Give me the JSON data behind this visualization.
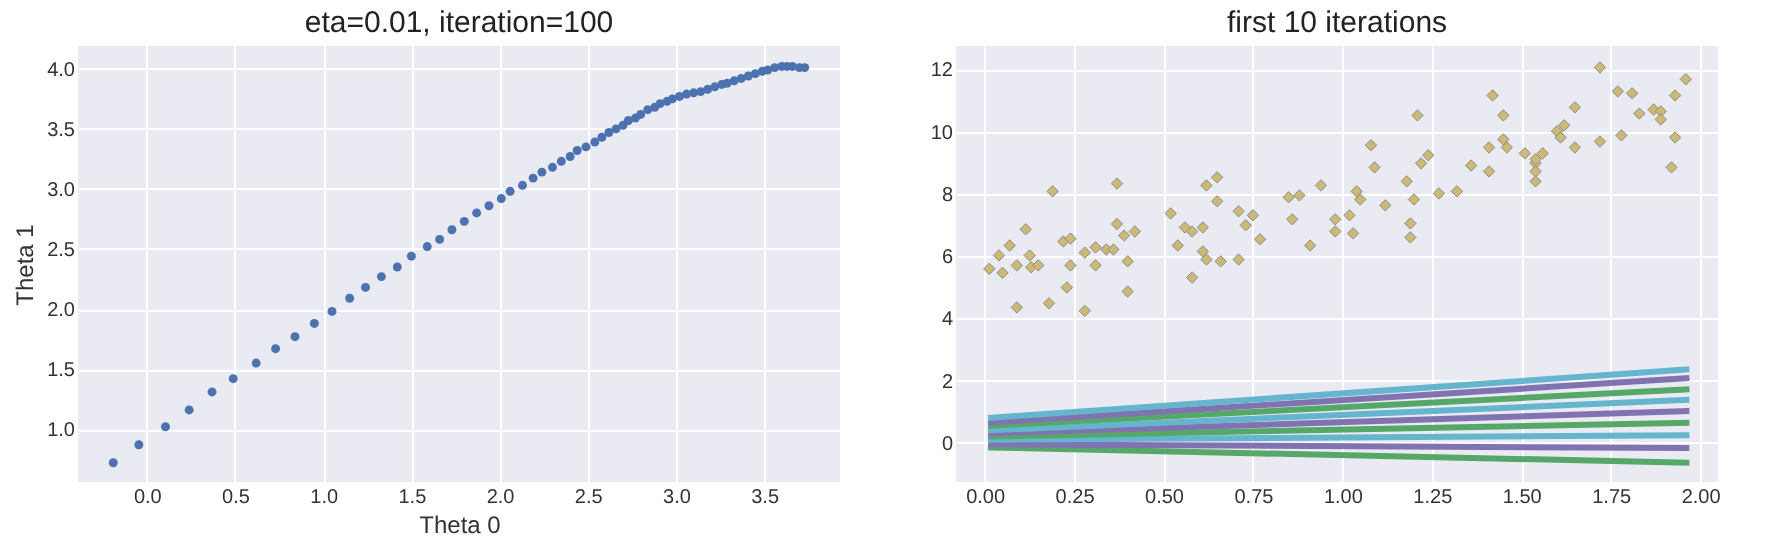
{
  "chart_data": [
    {
      "type": "scatter",
      "title": "eta=0.01, iteration=100",
      "xlabel": "Theta 0",
      "ylabel": "Theta 1",
      "marker": "circle",
      "grid": true,
      "xlim": [
        -0.39,
        3.93
      ],
      "ylim": [
        0.56,
        4.19
      ],
      "xticks": [
        {
          "value": 0,
          "label": "0.0"
        },
        {
          "value": 0.5,
          "label": "0.5"
        },
        {
          "value": 1,
          "label": "1.0"
        },
        {
          "value": 1.5,
          "label": "1.5"
        },
        {
          "value": 2,
          "label": "2.0"
        },
        {
          "value": 2.5,
          "label": "2.5"
        },
        {
          "value": 3,
          "label": "3.0"
        },
        {
          "value": 3.5,
          "label": "3.5"
        }
      ],
      "yticks": [
        {
          "value": 1,
          "label": "1.0"
        },
        {
          "value": 1.5,
          "label": "1.5"
        },
        {
          "value": 2,
          "label": "2.0"
        },
        {
          "value": 2.5,
          "label": "2.5"
        },
        {
          "value": 3,
          "label": "3.0"
        },
        {
          "value": 3.5,
          "label": "3.5"
        },
        {
          "value": 4,
          "label": "4.0"
        }
      ],
      "series": [
        {
          "color": "#4c72b0",
          "x": [
            -0.19,
            -0.045,
            0.106,
            0.24,
            0.37,
            0.49,
            0.62,
            0.73,
            0.84,
            0.95,
            1.05,
            1.15,
            1.24,
            1.33,
            1.42,
            1.5,
            1.59,
            1.66,
            1.73,
            1.8,
            1.87,
            1.94,
            2.01,
            2.06,
            2.13,
            2.19,
            2.24,
            2.3,
            2.35,
            2.4,
            2.44,
            2.49,
            2.54,
            2.58,
            2.62,
            2.66,
            2.7,
            2.73,
            2.77,
            2.8,
            2.84,
            2.88,
            2.91,
            2.95,
            2.98,
            3.02,
            3.06,
            3.1,
            3.14,
            3.18,
            3.22,
            3.26,
            3.29,
            3.33,
            3.37,
            3.41,
            3.45,
            3.49,
            3.52,
            3.56,
            3.6,
            3.63,
            3.66,
            3.7,
            3.73
          ],
          "values": [
            0.72,
            0.87,
            1.02,
            1.16,
            1.31,
            1.42,
            1.55,
            1.67,
            1.77,
            1.88,
            1.98,
            2.09,
            2.18,
            2.27,
            2.35,
            2.44,
            2.52,
            2.58,
            2.66,
            2.73,
            2.8,
            2.86,
            2.92,
            2.98,
            3.03,
            3.09,
            3.14,
            3.18,
            3.23,
            3.27,
            3.32,
            3.35,
            3.39,
            3.43,
            3.47,
            3.5,
            3.53,
            3.57,
            3.59,
            3.62,
            3.66,
            3.68,
            3.71,
            3.73,
            3.75,
            3.77,
            3.79,
            3.8,
            3.81,
            3.83,
            3.85,
            3.87,
            3.88,
            3.9,
            3.92,
            3.94,
            3.96,
            3.98,
            3.99,
            4.01,
            4.02,
            4.02,
            4.02,
            4.01,
            4.01
          ]
        }
      ]
    },
    {
      "type": "scatter",
      "title": "first 10 iterations",
      "grid": true,
      "xlim": [
        -0.08,
        2.05
      ],
      "ylim": [
        -1.26,
        12.75
      ],
      "xticks": [
        {
          "value": 0,
          "label": "0.00"
        },
        {
          "value": 0.25,
          "label": "0.25"
        },
        {
          "value": 0.5,
          "label": "0.50"
        },
        {
          "value": 0.75,
          "label": "0.75"
        },
        {
          "value": 1,
          "label": "1.00"
        },
        {
          "value": 1.25,
          "label": "1.25"
        },
        {
          "value": 1.5,
          "label": "1.50"
        },
        {
          "value": 1.75,
          "label": "1.75"
        },
        {
          "value": 2,
          "label": "2.00"
        }
      ],
      "yticks": [
        0,
        2,
        4,
        6,
        8,
        10,
        12
      ],
      "series": [
        {
          "color": "#ccb974",
          "marker": "diamond",
          "x": [
            0.013,
            0.04,
            0.05,
            0.07,
            0.09,
            0.09,
            0.115,
            0.126,
            0.13,
            0.15,
            0.18,
            0.19,
            0.22,
            0.24,
            0.23,
            0.24,
            0.28,
            0.28,
            0.31,
            0.31,
            0.34,
            0.36,
            0.37,
            0.37,
            0.39,
            0.4,
            0.4,
            0.42,
            0.52,
            0.54,
            0.56,
            0.58,
            0.58,
            0.61,
            0.61,
            0.62,
            0.62,
            0.65,
            0.65,
            0.66,
            0.71,
            0.71,
            0.73,
            0.75,
            0.77,
            0.85,
            0.86,
            0.88,
            0.91,
            0.94,
            0.98,
            0.98,
            1.02,
            1.03,
            1.04,
            1.05,
            1.08,
            1.09,
            1.12,
            1.18,
            1.19,
            1.19,
            1.2,
            1.21,
            1.22,
            1.24,
            1.27,
            1.32,
            1.36,
            1.41,
            1.41,
            1.42,
            1.45,
            1.45,
            1.46,
            1.51,
            1.54,
            1.54,
            1.54,
            1.54,
            1.56,
            1.6,
            1.61,
            1.62,
            1.65,
            1.65,
            1.72,
            1.72,
            1.77,
            1.78,
            1.81,
            1.83,
            1.87,
            1.89,
            1.89,
            1.92,
            1.93,
            1.93,
            1.96
          ],
          "values": [
            5.59,
            6.02,
            5.46,
            6.34,
            5.7,
            4.35,
            6.86,
            6.02,
            5.64,
            5.7,
            4.48,
            8.08,
            6.47,
            6.56,
            4.99,
            5.7,
            6.11,
            4.24,
            6.28,
            5.7,
            6.21,
            6.21,
            8.33,
            7.03,
            6.66,
            5.83,
            4.86,
            6.79,
            7.37,
            6.34,
            6.92,
            5.31,
            6.79,
            6.92,
            6.15,
            8.27,
            5.89,
            8.53,
            7.76,
            5.83,
            7.44,
            5.89,
            6.99,
            7.31,
            6.54,
            7.89,
            7.18,
            7.95,
            6.34,
            8.27,
            7.18,
            6.79,
            7.31,
            6.73,
            8.08,
            7.82,
            9.56,
            8.85,
            7.63,
            8.4,
            7.05,
            6.6,
            7.82,
            10.52,
            8.98,
            9.24,
            8.01,
            8.08,
            8.91,
            9.49,
            8.72,
            11.16,
            10.52,
            9.75,
            9.49,
            9.3,
            8.98,
            8.72,
            8.4,
            9.11,
            9.3,
            10.01,
            9.81,
            10.2,
            10.78,
            9.49,
            12.06,
            9.68,
            11.29,
            9.88,
            11.23,
            10.58,
            10.71,
            10.65,
            10.39,
            8.85,
            11.16,
            9.81,
            11.68
          ]
        },
        {
          "type": "line",
          "marker": "none",
          "color": "#55a868",
          "x": [
            0.01,
            1.97
          ],
          "values": [
            -0.15,
            -0.64
          ]
        },
        {
          "type": "line",
          "marker": "none",
          "color": "#8172b2",
          "x": [
            0.01,
            1.97
          ],
          "values": [
            -0.05,
            -0.17
          ]
        },
        {
          "type": "line",
          "marker": "none",
          "color": "#64b5cd",
          "x": [
            0.01,
            1.97
          ],
          "values": [
            0.1,
            0.24
          ]
        },
        {
          "type": "line",
          "marker": "none",
          "color": "#55a868",
          "x": [
            0.01,
            1.97
          ],
          "values": [
            0.2,
            0.64
          ]
        },
        {
          "type": "line",
          "marker": "none",
          "color": "#8172b2",
          "x": [
            0.01,
            1.97
          ],
          "values": [
            0.3,
            1.02
          ]
        },
        {
          "type": "line",
          "marker": "none",
          "color": "#64b5cd",
          "x": [
            0.01,
            1.97
          ],
          "values": [
            0.4,
            1.38
          ]
        },
        {
          "type": "line",
          "marker": "none",
          "color": "#55a868",
          "x": [
            0.01,
            1.97
          ],
          "values": [
            0.55,
            1.72
          ]
        },
        {
          "type": "line",
          "marker": "none",
          "color": "#8172b2",
          "x": [
            0.01,
            1.97
          ],
          "values": [
            0.65,
            2.08
          ]
        },
        {
          "type": "line",
          "marker": "none",
          "color": "#64b5cd",
          "x": [
            0.01,
            1.97
          ],
          "values": [
            0.8,
            2.36
          ]
        }
      ]
    }
  ]
}
